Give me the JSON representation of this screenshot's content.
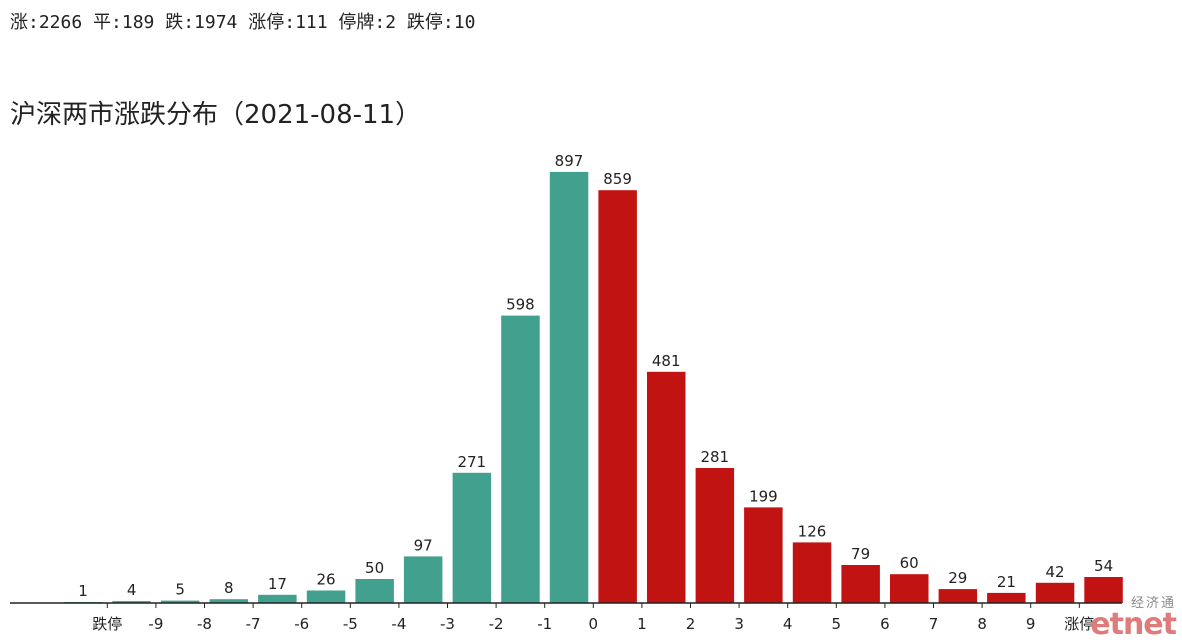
{
  "header": {
    "stats": "涨:2266 平:189 跌:1974 涨停:111 停牌:2 跌停:10"
  },
  "chart_data": {
    "type": "bar",
    "title": "沪深两市涨跌分布（2021-08-11）",
    "categories": [
      "",
      "跌停",
      "-9",
      "-8",
      "-7",
      "-6",
      "-5",
      "-4",
      "-3",
      "-2",
      "-1",
      "0",
      "1",
      "2",
      "3",
      "4",
      "5",
      "6",
      "7",
      "8",
      "9",
      "涨停"
    ],
    "values": [
      1,
      4,
      5,
      8,
      17,
      26,
      50,
      97,
      271,
      598,
      897,
      859,
      481,
      281,
      199,
      126,
      79,
      60,
      29,
      21,
      42,
      54
    ],
    "tick_labels": [
      "跌停",
      "-9",
      "-8",
      "-7",
      "-6",
      "-5",
      "-4",
      "-3",
      "-2",
      "-1",
      "0",
      "1",
      "2",
      "3",
      "4",
      "5",
      "6",
      "7",
      "8",
      "9",
      "涨停"
    ],
    "colors": {
      "down": "#42a18e",
      "up": "#c21313",
      "axis": "#222222"
    },
    "up_from_index": 11,
    "xlabel": "",
    "ylabel": "",
    "grid": false
  },
  "watermark": {
    "cn": "经济通",
    "en": "etnet"
  }
}
